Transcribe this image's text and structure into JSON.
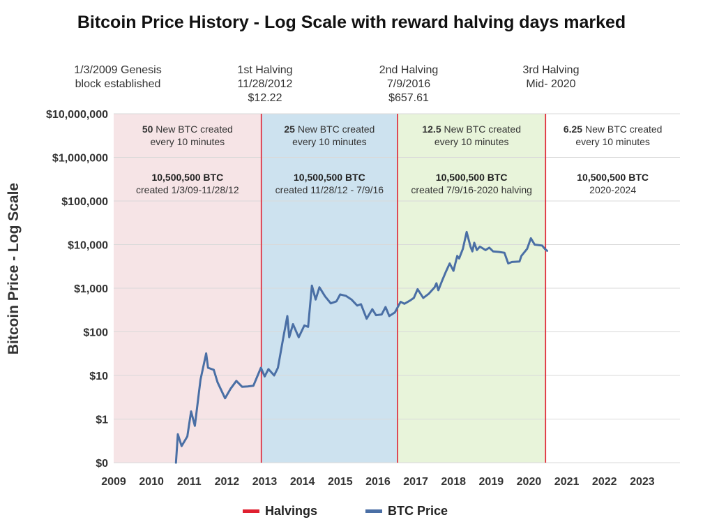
{
  "colors": {
    "halving": "#e02030",
    "btc": "#4a6fa5",
    "era1": "#f6e4e6",
    "era2": "#cde2ef",
    "era3": "#e8f4da",
    "era4": "#ffffff",
    "grid": "#d9d9d9"
  },
  "chart_data": {
    "type": "line",
    "title": "Bitcoin Price History - Log Scale with reward halving days marked",
    "ylabel": "Bitcoin Price - Log Scale",
    "xlabel": "",
    "xlim": [
      2009,
      2024
    ],
    "y_scale": "log",
    "y_ticks": [
      {
        "value": 0.1,
        "label": "$0"
      },
      {
        "value": 1,
        "label": "$1"
      },
      {
        "value": 10,
        "label": "$10"
      },
      {
        "value": 100,
        "label": "$100"
      },
      {
        "value": 1000,
        "label": "$1,000"
      },
      {
        "value": 10000,
        "label": "$10,000"
      },
      {
        "value": 100000,
        "label": "$100,000"
      },
      {
        "value": 1000000,
        "label": "$1,000,000"
      },
      {
        "value": 10000000,
        "label": "$10,000,000"
      }
    ],
    "x_ticks": [
      2009,
      2010,
      2011,
      2012,
      2013,
      2014,
      2015,
      2016,
      2017,
      2018,
      2019,
      2020,
      2021,
      2022,
      2023
    ],
    "halving_lines": [
      2012.91,
      2016.52,
      2020.44
    ],
    "eras": [
      {
        "from": 2009,
        "to": 2012.91,
        "color_key": "era1",
        "amount": "50",
        "rate_text": " New BTC created",
        "rate_text2": "every 10 minutes",
        "total": "10,500,500 BTC",
        "period": "created 1/3/09-11/28/12"
      },
      {
        "from": 2012.91,
        "to": 2016.52,
        "color_key": "era2",
        "amount": "25",
        "rate_text": " New BTC created",
        "rate_text2": "every 10 minutes",
        "total": "10,500,500 BTC",
        "period": "created 11/28/12 - 7/9/16"
      },
      {
        "from": 2016.52,
        "to": 2020.44,
        "color_key": "era3",
        "amount": "12.5",
        "rate_text": " New BTC created",
        "rate_text2": "every 10 minutes",
        "total": "10,500,500 BTC",
        "period": "created 7/9/16-2020 halving"
      },
      {
        "from": 2020.44,
        "to": 2024,
        "color_key": "era4",
        "amount": "6.25",
        "rate_text": " New BTC created",
        "rate_text2": "every 10 minutes",
        "total": "10,500,500 BTC",
        "period": "2020-2024"
      }
    ],
    "series": [
      {
        "name": "BTC Price",
        "points": [
          [
            2010.65,
            0.1
          ],
          [
            2010.7,
            0.45
          ],
          [
            2010.8,
            0.24
          ],
          [
            2010.95,
            0.4
          ],
          [
            2011.05,
            1.5
          ],
          [
            2011.15,
            0.7
          ],
          [
            2011.3,
            8.0
          ],
          [
            2011.45,
            32.0
          ],
          [
            2011.5,
            15.0
          ],
          [
            2011.65,
            13.5
          ],
          [
            2011.75,
            7.0
          ],
          [
            2011.95,
            3.0
          ],
          [
            2012.1,
            5.0
          ],
          [
            2012.25,
            7.5
          ],
          [
            2012.4,
            5.5
          ],
          [
            2012.55,
            5.6
          ],
          [
            2012.7,
            5.8
          ],
          [
            2012.9,
            15.0
          ],
          [
            2013.0,
            9.5
          ],
          [
            2013.1,
            14.0
          ],
          [
            2013.25,
            10.0
          ],
          [
            2013.35,
            15.0
          ],
          [
            2013.5,
            80.0
          ],
          [
            2013.6,
            230.0
          ],
          [
            2013.65,
            75.0
          ],
          [
            2013.75,
            150.0
          ],
          [
            2013.9,
            75.0
          ],
          [
            2014.05,
            140.0
          ],
          [
            2014.15,
            130.0
          ],
          [
            2014.25,
            1150.0
          ],
          [
            2014.35,
            550.0
          ],
          [
            2014.45,
            1050.0
          ],
          [
            2014.6,
            650.0
          ],
          [
            2014.75,
            450.0
          ],
          [
            2014.9,
            500.0
          ],
          [
            2015.0,
            720.0
          ],
          [
            2015.15,
            670.0
          ],
          [
            2015.3,
            550.0
          ],
          [
            2015.45,
            400.0
          ],
          [
            2015.55,
            430.0
          ],
          [
            2015.7,
            200.0
          ],
          [
            2015.85,
            330.0
          ],
          [
            2015.95,
            240.0
          ],
          [
            2016.1,
            250.0
          ],
          [
            2016.2,
            370.0
          ],
          [
            2016.3,
            230.0
          ],
          [
            2016.45,
            280.0
          ],
          [
            2016.6,
            490.0
          ],
          [
            2016.7,
            440.0
          ],
          [
            2016.85,
            520.0
          ],
          [
            2016.95,
            600.0
          ],
          [
            2017.05,
            950.0
          ],
          [
            2017.2,
            600.0
          ],
          [
            2017.35,
            750.0
          ],
          [
            2017.5,
            1050.0
          ],
          [
            2017.55,
            1300.0
          ],
          [
            2017.6,
            900.0
          ],
          [
            2017.7,
            1500.0
          ],
          [
            2017.8,
            2400.0
          ],
          [
            2017.9,
            3700.0
          ],
          [
            2018.0,
            2500.0
          ],
          [
            2018.1,
            5500.0
          ],
          [
            2018.15,
            4800.0
          ],
          [
            2018.25,
            8000.0
          ],
          [
            2018.35,
            19500.0
          ],
          [
            2018.45,
            9000.0
          ],
          [
            2018.5,
            7000.0
          ],
          [
            2018.55,
            11000.0
          ],
          [
            2018.62,
            7500.0
          ],
          [
            2018.7,
            9000.0
          ],
          [
            2018.85,
            7500.0
          ],
          [
            2018.95,
            8500.0
          ],
          [
            2019.05,
            7000.0
          ],
          [
            2019.2,
            6800.0
          ],
          [
            2019.35,
            6500.0
          ],
          [
            2019.45,
            3700.0
          ],
          [
            2019.55,
            4000.0
          ],
          [
            2019.75,
            4100.0
          ],
          [
            2019.8,
            5500.0
          ],
          [
            2019.95,
            8000.0
          ],
          [
            2020.05,
            14000.0
          ],
          [
            2020.15,
            10000.0
          ],
          [
            2020.35,
            9500.0
          ],
          [
            2020.42,
            8000.0
          ],
          [
            2020.48,
            7200.0
          ]
        ]
      }
    ],
    "annotations": [
      {
        "x": 2010.1,
        "text": "1/3/2009 Genesis\nblock established"
      },
      {
        "x": 2012.95,
        "text": "1st Halving\n11/28/2012\n$12.22"
      },
      {
        "x": 2016.55,
        "text": "2nd Halving\n7/9/2016\n$657.61"
      },
      {
        "x": 2020.0,
        "text": "3rd Halving\nMid- 2020"
      }
    ],
    "legend": [
      {
        "name": "Halvings",
        "color_key": "halving"
      },
      {
        "name": "BTC Price",
        "color_key": "btc"
      }
    ]
  }
}
